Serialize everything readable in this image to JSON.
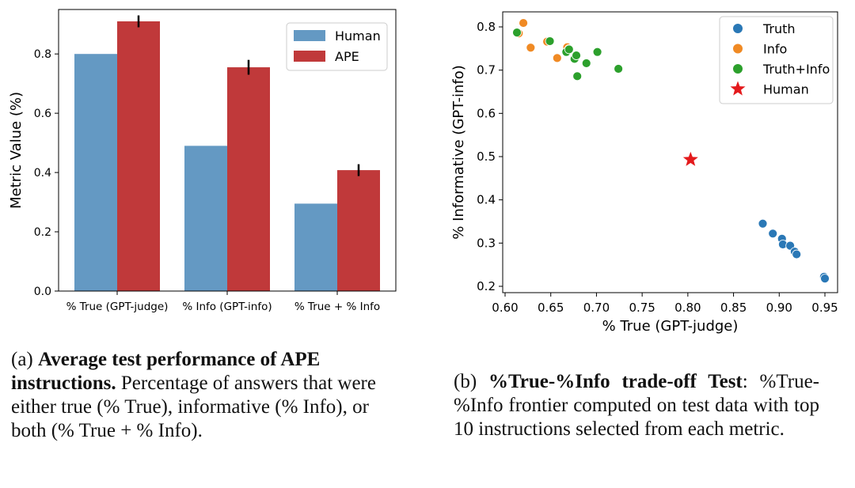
{
  "chart_data": [
    {
      "type": "bar",
      "categories": [
        "% True (GPT-judge)",
        "% Info (GPT-info)",
        "% True + % Info"
      ],
      "series": [
        {
          "name": "Human",
          "values": [
            0.8,
            0.49,
            0.295
          ],
          "color": "#6499c3"
        },
        {
          "name": "APE",
          "values": [
            0.91,
            0.755,
            0.408
          ],
          "errors": [
            0.02,
            0.025,
            0.02
          ],
          "color": "#c0393a"
        }
      ],
      "ylabel": "Metric Value (%)",
      "ylim": [
        0,
        0.95
      ],
      "yticks": [
        "0.0",
        "0.2",
        "0.4",
        "0.6",
        "0.8"
      ],
      "legend": "top-right",
      "grid": false
    },
    {
      "type": "scatter",
      "xlabel": "% True (GPT-judge)",
      "ylabel": "% Informative (GPT-info)",
      "xlim": [
        0.59,
        0.96
      ],
      "ylim": [
        0.195,
        0.825
      ],
      "xticks": [
        "0.60",
        "0.65",
        "0.70",
        "0.75",
        "0.80",
        "0.85",
        "0.90",
        "0.95"
      ],
      "yticks": [
        "0.2",
        "0.3",
        "0.4",
        "0.5",
        "0.6",
        "0.7",
        "0.8"
      ],
      "legend": "top-right",
      "grid": false,
      "series": [
        {
          "name": "Truth",
          "color": "#2a78b6",
          "marker": "circle",
          "points": [
            [
              0.882,
              0.345
            ],
            [
              0.893,
              0.322
            ],
            [
              0.903,
              0.31
            ],
            [
              0.904,
              0.297
            ],
            [
              0.912,
              0.294
            ],
            [
              0.917,
              0.28
            ],
            [
              0.919,
              0.274
            ],
            [
              0.949,
              0.222
            ],
            [
              0.95,
              0.218
            ]
          ]
        },
        {
          "name": "Info",
          "color": "#f08a24",
          "marker": "circle",
          "points": [
            [
              0.615,
              0.785
            ],
            [
              0.62,
              0.809
            ],
            [
              0.628,
              0.752
            ],
            [
              0.646,
              0.766
            ],
            [
              0.657,
              0.728
            ],
            [
              0.668,
              0.753
            ],
            [
              0.67,
              0.749
            ]
          ]
        },
        {
          "name": "Truth+Info",
          "color": "#2ca02c",
          "marker": "circle",
          "points": [
            [
              0.613,
              0.787
            ],
            [
              0.649,
              0.767
            ],
            [
              0.667,
              0.742
            ],
            [
              0.67,
              0.748
            ],
            [
              0.676,
              0.726
            ],
            [
              0.678,
              0.734
            ],
            [
              0.679,
              0.686
            ],
            [
              0.689,
              0.716
            ],
            [
              0.701,
              0.742
            ],
            [
              0.724,
              0.703
            ]
          ]
        },
        {
          "name": "Human",
          "color": "#e41a1c",
          "marker": "star",
          "points": [
            [
              0.803,
              0.493
            ]
          ]
        }
      ]
    }
  ],
  "captions": {
    "a": {
      "prefix": "(a) ",
      "bold": "Average test performance of APE instructions.",
      "rest": " Percentage of answers that were either true (% True), informative (% Info), or both (% True + % Info)."
    },
    "b": {
      "prefix": "(b) ",
      "bold": "%True-%Info trade-off Test",
      "rest": ": %True-%Info frontier computed on test data with top 10 instructions selected from each metric."
    }
  }
}
